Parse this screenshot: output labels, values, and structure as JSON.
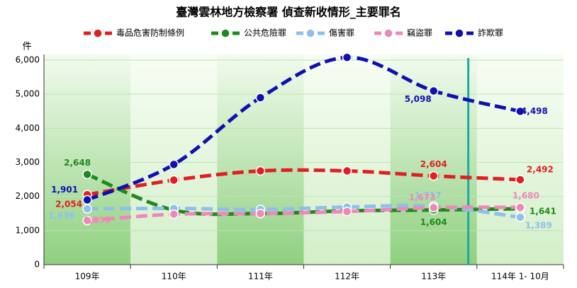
{
  "chart_data": {
    "type": "line",
    "title": "臺灣雲林地方檢察署 偵查新收情形_主要罪名",
    "y_label": "件",
    "categories": [
      "109年",
      "110年",
      "111年",
      "112年",
      "113年",
      "114年 1- 10月"
    ],
    "ylim": [
      0,
      6000
    ],
    "yticks": [
      0,
      {
        "value": 1000,
        "label": "1,000"
      },
      {
        "value": 2000,
        "label": "2,000"
      },
      {
        "value": 3000,
        "label": "3,000"
      },
      {
        "value": 4000,
        "label": "4,000"
      },
      {
        "value": 5000,
        "label": "5,000"
      },
      {
        "value": 6000,
        "label": "6,000"
      }
    ],
    "grid": true,
    "series": [
      {
        "name": "毒品危害防制條例",
        "color": "#e02020",
        "values": [
          2054,
          2480,
          2750,
          2750,
          2604,
          2492
        ],
        "value_labels": [
          "2,054",
          null,
          null,
          null,
          "2,604",
          "2,492"
        ]
      },
      {
        "name": "公共危險罪",
        "color": "#1e8a1e",
        "values": [
          2648,
          1600,
          1500,
          1580,
          1604,
          1641
        ],
        "value_labels": [
          "2,648",
          null,
          null,
          null,
          "1,604",
          "1,641"
        ]
      },
      {
        "name": "傷害罪",
        "color": "#8ec0ea",
        "values": [
          1636,
          1650,
          1620,
          1690,
          1717,
          1389
        ],
        "value_labels": [
          "1,636",
          null,
          null,
          null,
          "1,717",
          "1,389"
        ]
      },
      {
        "name": "竊盜罪",
        "color": "#ee88bb",
        "values": [
          1293,
          1480,
          1500,
          1560,
          1673,
          1680
        ],
        "value_labels": [
          "1,293",
          null,
          null,
          null,
          "1,673",
          "1,680"
        ]
      },
      {
        "name": "詐欺罪",
        "color": "#1010b0",
        "values": [
          1901,
          2940,
          4900,
          6080,
          5098,
          4498
        ],
        "value_labels": [
          "1,901",
          null,
          null,
          null,
          "5,098",
          "4,498"
        ]
      }
    ]
  }
}
